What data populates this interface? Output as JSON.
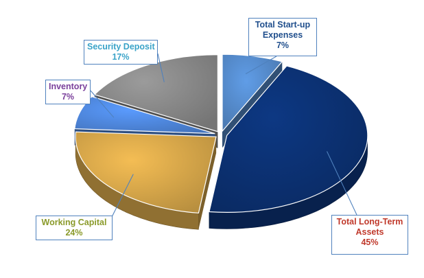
{
  "chart_data": {
    "type": "pie",
    "style": "3d-exploded",
    "title": "",
    "slices": [
      {
        "label": "Total Start-up Expenses",
        "label_lines": [
          "Total Start-up",
          "Expenses"
        ],
        "percent_label": "7%",
        "value": 7,
        "color": "#4f81bd",
        "label_color": "#1f4e8c"
      },
      {
        "label": "Total Long-Term Assets",
        "label_lines": [
          "Total Long-Term",
          "Assets"
        ],
        "percent_label": "45%",
        "value": 45,
        "color": "#0b2e6b",
        "label_color": "#c0392b"
      },
      {
        "label": "Working Capital",
        "label_lines": [
          "Working Capital"
        ],
        "percent_label": "24%",
        "value": 24,
        "color": "#c89b45",
        "label_color": "#8a9a2a"
      },
      {
        "label": "Inventory",
        "label_lines": [
          "Inventory"
        ],
        "percent_label": "7%",
        "value": 7,
        "color": "#4a7fd0",
        "label_color": "#7a3f9b"
      },
      {
        "label": "Security Deposit",
        "label_lines": [
          "Security Deposit"
        ],
        "percent_label": "17%",
        "value": 17,
        "color": "#7f7f7f",
        "label_color": "#3aa3c8"
      }
    ],
    "legend": "none",
    "data_labels": "callouts"
  }
}
